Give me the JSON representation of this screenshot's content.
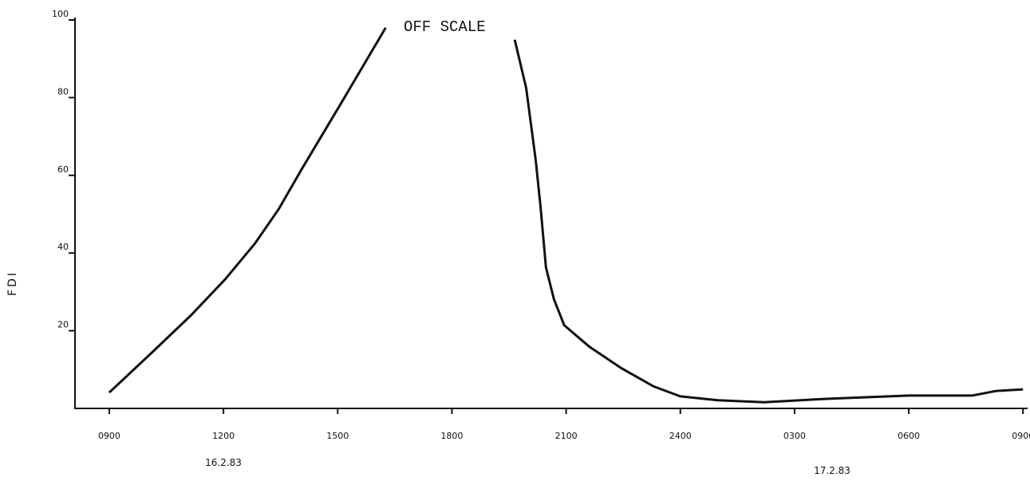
{
  "chart_data": {
    "type": "line",
    "y_label": "FDI",
    "annotation": "OFF SCALE",
    "date_labels": [
      "16.2.83",
      "17.2.83"
    ],
    "x": [
      9.0,
      10.1,
      11.15,
      12.05,
      12.83,
      13.45,
      14.08,
      15.08,
      16.26,
      null,
      19.65,
      19.95,
      20.2,
      20.33,
      20.47,
      20.68,
      20.95,
      21.62,
      22.46,
      23.29,
      24.0,
      24.98,
      26.2,
      27.9,
      30.0,
      31.66,
      32.3,
      33.0
    ],
    "series": [
      {
        "name": "FDI",
        "color": "#111111",
        "values": [
          4.1,
          14.2,
          24,
          33.3,
          42.5,
          51.3,
          62,
          78.4,
          98,
          null,
          94.9,
          82.5,
          64,
          51.7,
          36.3,
          28.1,
          21.4,
          15.8,
          10.3,
          5.7,
          3.1,
          2.1,
          1.6,
          2.5,
          3.3,
          3.3,
          4.5,
          4.9
        ]
      }
    ],
    "xlim": [
      8.1,
      33.1
    ],
    "xticks": [
      {
        "value": 9,
        "label": "0900"
      },
      {
        "value": 12,
        "label": "1200"
      },
      {
        "value": 15,
        "label": "1500"
      },
      {
        "value": 18,
        "label": "1800"
      },
      {
        "value": 21,
        "label": "2100"
      },
      {
        "value": 24,
        "label": "2400"
      },
      {
        "value": 27,
        "label": "0300"
      },
      {
        "value": 30,
        "label": "0600"
      },
      {
        "value": 33,
        "label": "0900"
      }
    ],
    "ylim": [
      0,
      100
    ],
    "yticks": [
      20,
      40,
      60,
      80,
      100
    ],
    "grid": false
  }
}
